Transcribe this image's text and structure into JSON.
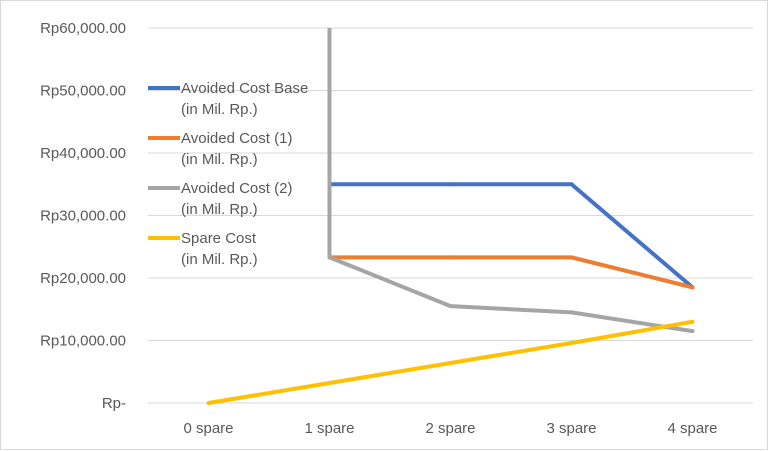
{
  "chart_data": {
    "type": "line",
    "categories": [
      "0 spare",
      "1 spare",
      "2 spare",
      "3 spare",
      "4 spare"
    ],
    "y_ticks": [
      "Rp-",
      "Rp10,000.00",
      "Rp20,000.00",
      "Rp30,000.00",
      "Rp40,000.00",
      "Rp50,000.00",
      "Rp60,000.00"
    ],
    "ylim": [
      0,
      60000
    ],
    "grid": true,
    "legend_position": "left",
    "series": [
      {
        "name": "Avoided Cost Base",
        "name_line2": "(in Mil. Rp.)",
        "color": "#4472C4",
        "values": [
          null,
          35000,
          35000,
          35000,
          18500
        ]
      },
      {
        "name": "Avoided Cost  (1)",
        "name_line2": "(in Mil. Rp.)",
        "color": "#ED7D31",
        "values": [
          null,
          23300,
          23300,
          23300,
          18500
        ]
      },
      {
        "name": "Avoided Cost  (2)",
        "name_line2": "(in Mil. Rp.)",
        "color": "#A5A5A5",
        "values": [
          null,
          23300,
          15500,
          14500,
          11500
        ],
        "vertical_from": 60000
      },
      {
        "name": "Spare Cost",
        "name_line2": "(in Mil. Rp.)",
        "color": "#FFC000",
        "values": [
          0,
          3200,
          6400,
          9600,
          13000
        ]
      }
    ]
  }
}
